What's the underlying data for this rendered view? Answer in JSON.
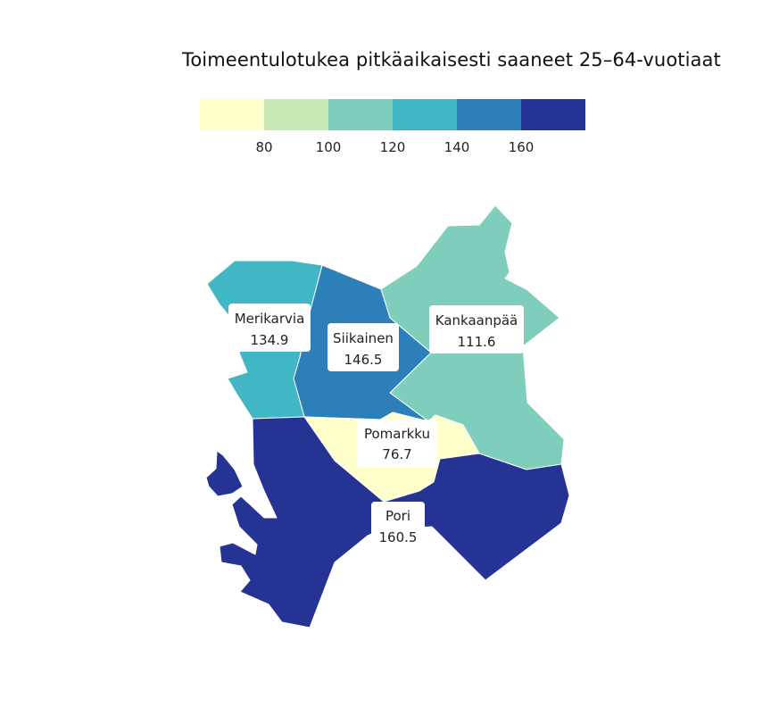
{
  "map": {
    "title": "Toimeentulotukea pitkäaikaisesti saaneet 25–64-vuotiaat"
  },
  "legend": {
    "colors": [
      "#ffffcc",
      "#c7e9b4",
      "#7fcdbb",
      "#41b6c4",
      "#2c7fb8",
      "#253494"
    ],
    "ticks": [
      "80",
      "100",
      "120",
      "140",
      "160"
    ]
  },
  "regions": [
    {
      "name": "Merikarvia",
      "value": "134.9",
      "color": "#41b6c4"
    },
    {
      "name": "Siikainen",
      "value": "146.5",
      "color": "#2c7fb8"
    },
    {
      "name": "Kankaanpää",
      "value": "111.6",
      "color": "#7fcdbb"
    },
    {
      "name": "Pomarkku",
      "value": "76.7",
      "color": "#ffffcc"
    },
    {
      "name": "Pori",
      "value": "160.5",
      "color": "#253494"
    }
  ]
}
